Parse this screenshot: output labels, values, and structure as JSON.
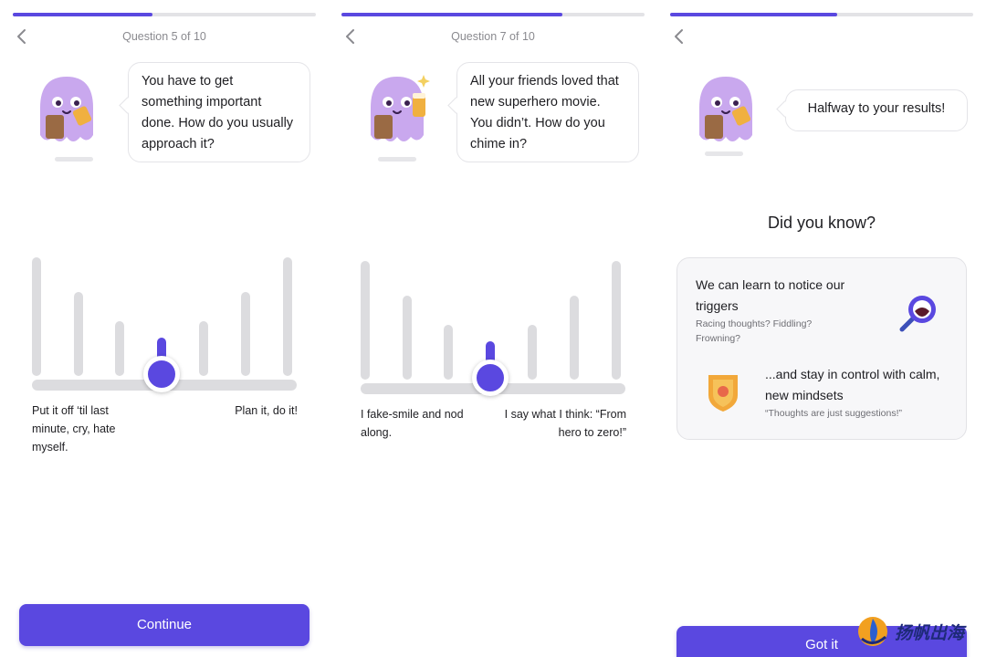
{
  "screens": [
    {
      "progress": 0.46,
      "question_label": "Question 5 of 10",
      "bubble_text": "You have to get something important done. How do you usually approach it?",
      "scale": {
        "bars": 7,
        "selected": 4
      },
      "left_label": "Put it off ‘til last minute, cry, hate myself.",
      "right_label": "Plan it, do it!",
      "cta": "Continue"
    },
    {
      "progress": 0.73,
      "question_label": "Question 7 of 10",
      "bubble_text": "All your friends loved that new superhero movie. You didn’t. How do you chime in?",
      "scale": {
        "bars": 7,
        "selected": 4
      },
      "left_label": "I fake-smile and nod along.",
      "right_label": "I say what I think: “From hero to zero!”"
    },
    {
      "progress": 0.55,
      "bubble_text": "Halfway to your results!",
      "did_you_know": {
        "title": "Did you know?",
        "item1_heading": "We can learn to notice our triggers",
        "item1_sub": "Racing thoughts? Fiddling? Frowning?",
        "item1_icon": "magnifier-icon",
        "item2_heading": "...and stay in control with calm, new mindsets",
        "item2_sub": "“Thoughts are just suggestions!”",
        "item2_icon": "shield-icon"
      },
      "cta": "Got it"
    }
  ],
  "watermark": "扬帆出海",
  "colors": {
    "accent": "#5a48e0",
    "mascot": "#c9a8ee",
    "inactive": "#dcdcdf"
  }
}
